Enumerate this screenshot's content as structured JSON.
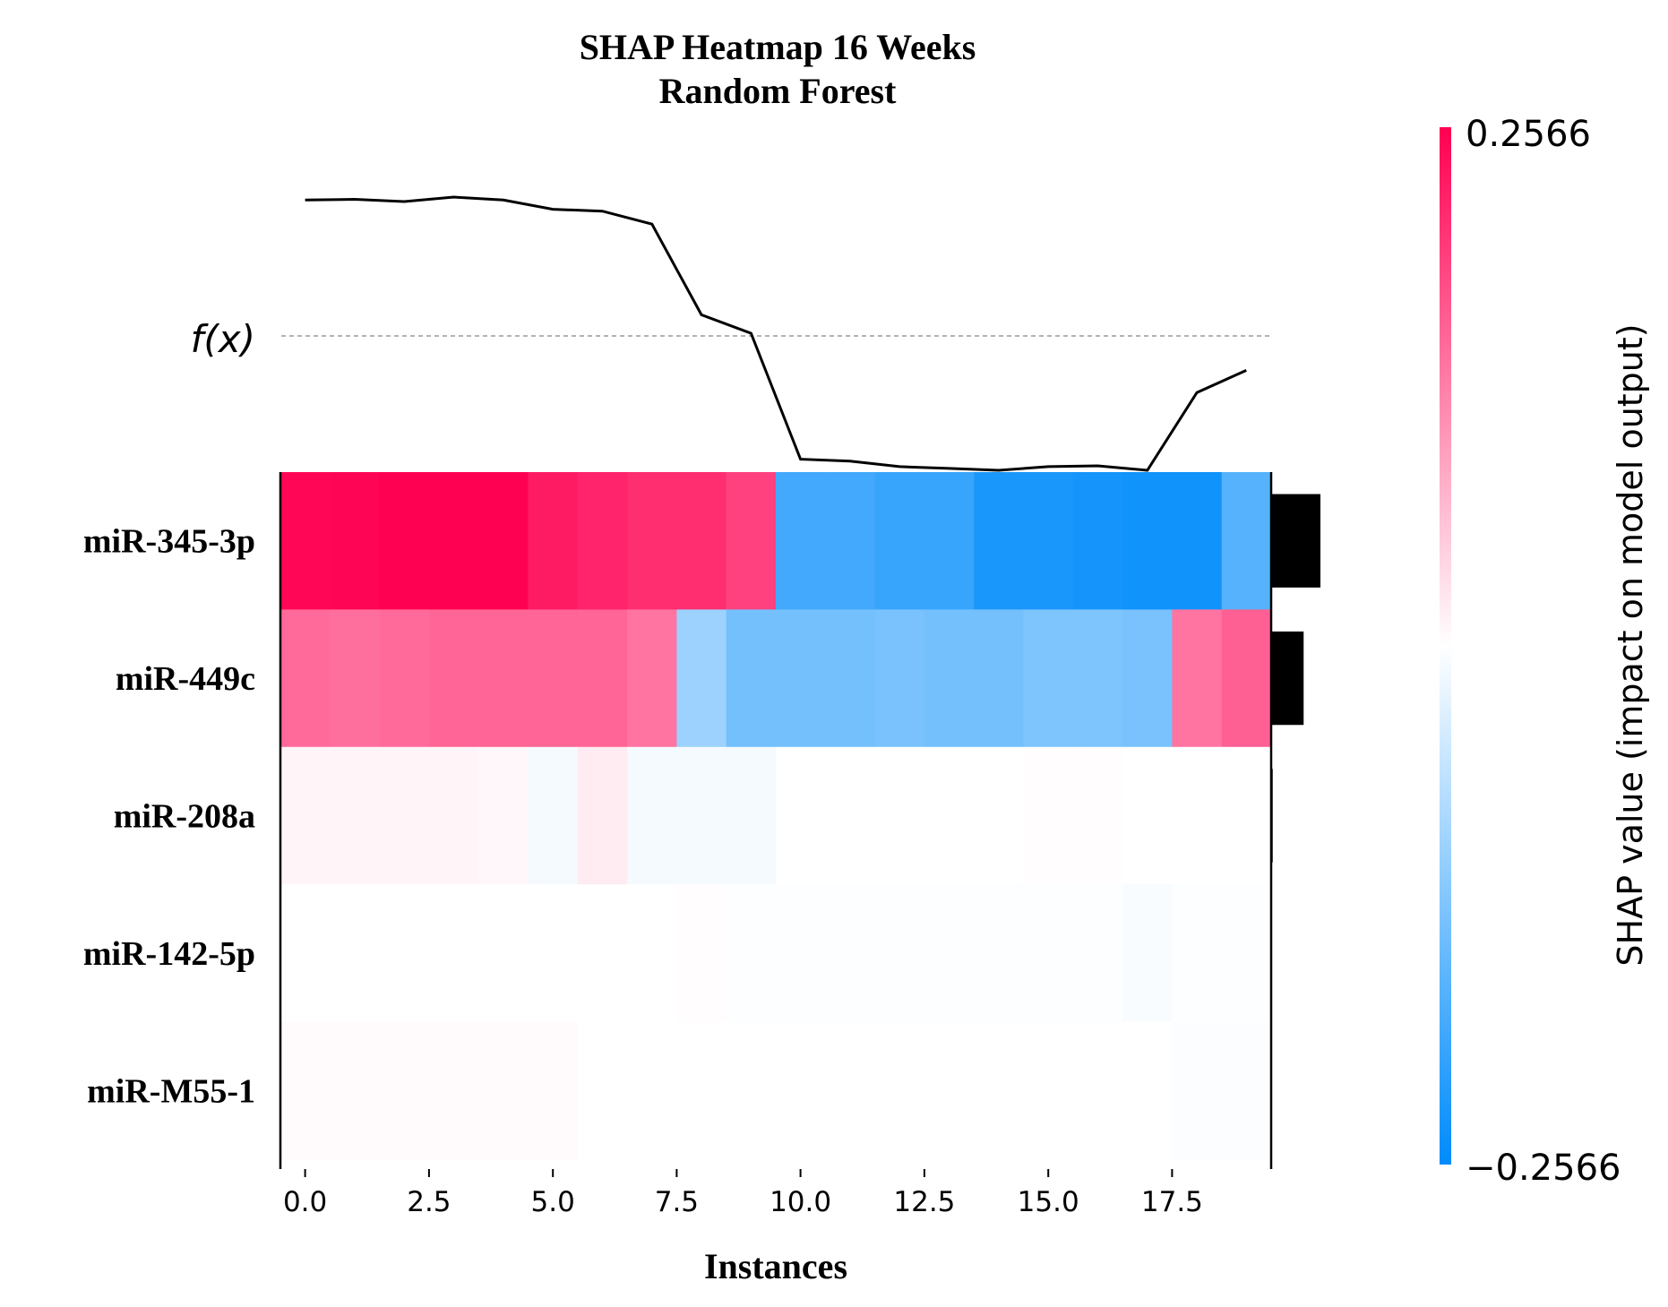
{
  "chart_data": {
    "type": "heatmap",
    "title": "SHAP Heatmap 16 Weeks",
    "subtitle": "Random Forest",
    "xlabel": "Instances",
    "fx_label": "f(x)",
    "x_ticks": [
      "0.0",
      "2.5",
      "5.0",
      "7.5",
      "10.0",
      "12.5",
      "15.0",
      "17.5"
    ],
    "xlim": [
      -0.5,
      19.5
    ],
    "features": [
      "miR-345-3p",
      "miR-449c",
      "miR-208a",
      "miR-142-5p",
      "miR-M55-1"
    ],
    "instances": 20,
    "shap_values": [
      [
        0.25,
        0.252,
        0.256,
        0.256,
        0.256,
        0.23,
        0.22,
        0.21,
        0.21,
        0.19,
        -0.19,
        -0.19,
        -0.2,
        -0.2,
        -0.23,
        -0.23,
        -0.235,
        -0.24,
        -0.24,
        -0.17
      ],
      [
        0.15,
        0.145,
        0.15,
        0.155,
        0.155,
        0.155,
        0.155,
        0.14,
        -0.1,
        -0.14,
        -0.14,
        -0.14,
        -0.135,
        -0.14,
        -0.14,
        -0.13,
        -0.13,
        -0.135,
        0.14,
        0.16
      ],
      [
        0.01,
        0.01,
        0.01,
        0.01,
        0.008,
        -0.01,
        0.02,
        -0.01,
        -0.01,
        -0.01,
        0.0,
        0.0,
        0.0,
        0.0,
        0.0,
        0.002,
        0.002,
        0.0,
        0.0,
        0.0
      ],
      [
        0.0,
        0.0,
        0.0,
        0.0,
        0.0,
        0.0,
        0.0,
        0.0,
        0.002,
        -0.003,
        -0.003,
        -0.003,
        -0.003,
        -0.003,
        -0.003,
        -0.003,
        -0.003,
        -0.006,
        -0.003,
        -0.003
      ],
      [
        0.005,
        0.005,
        0.005,
        0.005,
        0.005,
        0.005,
        0.0,
        0.0,
        0.0,
        0.0,
        0.0,
        0.0,
        0.0,
        0.0,
        0.0,
        0.0,
        0.0,
        0.0,
        -0.004,
        -0.004
      ]
    ],
    "fx_values": [
      0.53,
      0.532,
      0.526,
      0.538,
      0.53,
      0.505,
      0.5,
      0.465,
      0.22,
      0.17,
      -0.17,
      -0.175,
      -0.19,
      -0.195,
      -0.2,
      -0.19,
      -0.188,
      -0.2,
      0.01,
      0.07
    ],
    "fx_baseline": 0.1,
    "mean_abs_importance": [
      0.22,
      0.145,
      0.007,
      0.003,
      0.003
    ],
    "colorbar": {
      "label": "SHAP value (impact on model output)",
      "max_label": "0.2566",
      "min_label": "−0.2566",
      "range": [
        -0.2566,
        0.2566
      ],
      "colors": {
        "positive": "#ff0052",
        "neutral": "#ffffff",
        "negative": "#008bfb"
      }
    }
  }
}
